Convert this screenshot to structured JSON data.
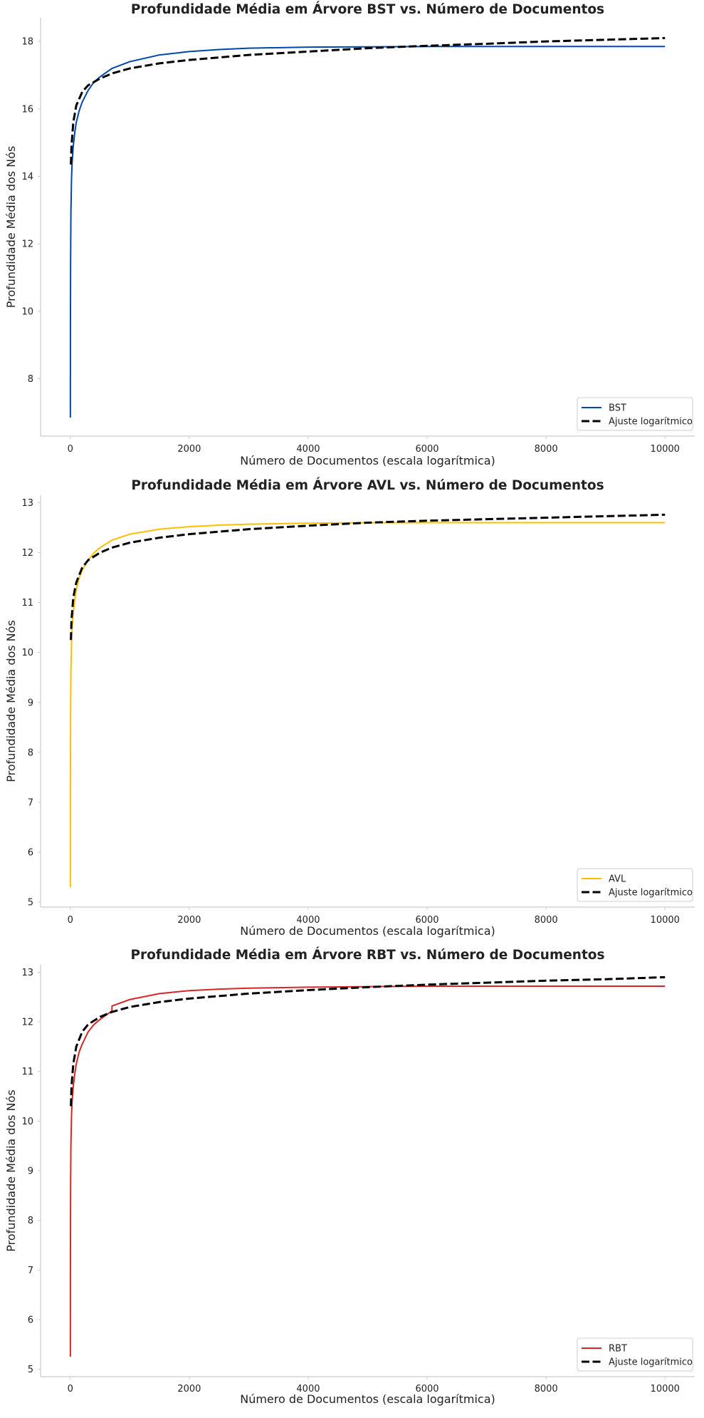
{
  "chart_data": [
    {
      "type": "line",
      "title": "Profundidade Média em Árvore BST vs. Número de Documentos",
      "xlabel": "Número de Documentos (escala logarítmica)",
      "ylabel": "Profundidade Média dos Nós",
      "xlim": [
        -500,
        10500
      ],
      "ylim": [
        6.3,
        18.7
      ],
      "xticks": [
        0,
        2000,
        4000,
        6000,
        8000,
        10000
      ],
      "xtick_labels": [
        "0",
        "2000",
        "4000",
        "6000",
        "8000",
        "10000"
      ],
      "yticks": [
        8,
        10,
        12,
        14,
        16,
        18
      ],
      "ytick_labels": [
        "8",
        "10",
        "12",
        "14",
        "16",
        "18"
      ],
      "grid": false,
      "legend": "lower-right",
      "series": [
        {
          "name": "BST",
          "color": "#0047ab",
          "style": "solid",
          "x": [
            1,
            2,
            5,
            10,
            20,
            30,
            50,
            75,
            100,
            150,
            200,
            300,
            400,
            500,
            700,
            1000,
            1500,
            2000,
            2500,
            3000,
            4000,
            5000,
            6000,
            7000,
            8000,
            9000,
            10000
          ],
          "y": [
            6.85,
            9.5,
            11.5,
            12.9,
            13.9,
            14.4,
            14.9,
            15.3,
            15.6,
            15.95,
            16.2,
            16.55,
            16.8,
            16.95,
            17.2,
            17.4,
            17.6,
            17.7,
            17.76,
            17.8,
            17.83,
            17.84,
            17.85,
            17.85,
            17.85,
            17.85,
            17.85
          ]
        },
        {
          "name": "Ajuste logarítmico",
          "color": "#000000",
          "style": "dashed",
          "x": [
            10,
            20,
            50,
            100,
            200,
            300,
            500,
            700,
            1000,
            1500,
            2000,
            3000,
            4000,
            5000,
            6000,
            7000,
            8000,
            9000,
            10000
          ],
          "y": [
            14.35,
            14.9,
            15.6,
            16.1,
            16.5,
            16.7,
            16.9,
            17.05,
            17.2,
            17.35,
            17.45,
            17.6,
            17.7,
            17.8,
            17.87,
            17.93,
            18.0,
            18.05,
            18.1
          ]
        }
      ]
    },
    {
      "type": "line",
      "title": "Profundidade Média em Árvore AVL vs. Número de Documentos",
      "xlabel": "Número de Documentos (escala logarítmica)",
      "ylabel": "Profundidade Média dos Nós",
      "xlim": [
        -500,
        10500
      ],
      "ylim": [
        4.9,
        13.15
      ],
      "xticks": [
        0,
        2000,
        4000,
        6000,
        8000,
        10000
      ],
      "xtick_labels": [
        "0",
        "2000",
        "4000",
        "6000",
        "8000",
        "10000"
      ],
      "yticks": [
        5,
        6,
        7,
        8,
        9,
        10,
        11,
        12,
        13
      ],
      "ytick_labels": [
        "5",
        "6",
        "7",
        "8",
        "9",
        "10",
        "11",
        "12",
        "13"
      ],
      "grid": false,
      "legend": "lower-right",
      "series": [
        {
          "name": "AVL",
          "color": "#ffbf00",
          "style": "solid",
          "x": [
            1,
            2,
            5,
            10,
            20,
            30,
            50,
            75,
            100,
            150,
            200,
            300,
            400,
            500,
            700,
            1000,
            1500,
            2000,
            2500,
            3000,
            4000,
            5000,
            6000,
            7000,
            8000,
            9000,
            10000
          ],
          "y": [
            5.3,
            7.3,
            8.8,
            9.6,
            10.2,
            10.5,
            10.8,
            11.05,
            11.25,
            11.5,
            11.65,
            11.85,
            12.0,
            12.1,
            12.25,
            12.37,
            12.47,
            12.52,
            12.55,
            12.57,
            12.59,
            12.6,
            12.6,
            12.6,
            12.6,
            12.6,
            12.6
          ]
        },
        {
          "name": "Ajuste logarítmico",
          "color": "#000000",
          "style": "dashed",
          "x": [
            10,
            20,
            50,
            100,
            200,
            300,
            500,
            700,
            1000,
            1500,
            2000,
            3000,
            4000,
            5000,
            6000,
            7000,
            8000,
            9000,
            10000
          ],
          "y": [
            10.25,
            10.65,
            11.1,
            11.4,
            11.7,
            11.85,
            12.0,
            12.1,
            12.2,
            12.3,
            12.37,
            12.47,
            12.54,
            12.6,
            12.64,
            12.67,
            12.7,
            12.73,
            12.76
          ]
        }
      ]
    },
    {
      "type": "line",
      "title": "Profundidade Média em Árvore RBT vs. Número de Documentos",
      "xlabel": "Número de Documentos (escala logarítmica)",
      "ylabel": "Profundidade Média dos Nós",
      "xlim": [
        -500,
        10500
      ],
      "ylim": [
        4.85,
        13.15
      ],
      "xticks": [
        0,
        2000,
        4000,
        6000,
        8000,
        10000
      ],
      "xtick_labels": [
        "0",
        "2000",
        "4000",
        "6000",
        "8000",
        "10000"
      ],
      "yticks": [
        5,
        6,
        7,
        8,
        9,
        10,
        11,
        12,
        13
      ],
      "ytick_labels": [
        "5",
        "6",
        "7",
        "8",
        "9",
        "10",
        "11",
        "12",
        "13"
      ],
      "grid": false,
      "legend": "lower-right",
      "series": [
        {
          "name": "RBT",
          "color": "#d62728",
          "style": "solid",
          "x": [
            1,
            2,
            5,
            10,
            20,
            30,
            50,
            75,
            100,
            150,
            200,
            300,
            400,
            500,
            700,
            701,
            1000,
            1500,
            2000,
            2500,
            3000,
            4000,
            5000,
            6000,
            7000,
            8000,
            9000,
            10000
          ],
          "y": [
            5.25,
            7.2,
            8.7,
            9.5,
            10.1,
            10.4,
            10.7,
            10.95,
            11.15,
            11.4,
            11.55,
            11.8,
            11.95,
            12.05,
            12.22,
            12.32,
            12.45,
            12.57,
            12.63,
            12.66,
            12.68,
            12.7,
            12.71,
            12.72,
            12.72,
            12.72,
            12.72,
            12.72
          ]
        },
        {
          "name": "Ajuste logarítmico",
          "color": "#000000",
          "style": "dashed",
          "x": [
            10,
            20,
            50,
            100,
            200,
            300,
            500,
            700,
            1000,
            1500,
            2000,
            3000,
            4000,
            5000,
            6000,
            7000,
            8000,
            9000,
            10000
          ],
          "y": [
            10.3,
            10.7,
            11.15,
            11.5,
            11.8,
            11.95,
            12.1,
            12.2,
            12.3,
            12.4,
            12.47,
            12.57,
            12.64,
            12.7,
            12.75,
            12.79,
            12.83,
            12.86,
            12.9
          ]
        }
      ]
    }
  ]
}
